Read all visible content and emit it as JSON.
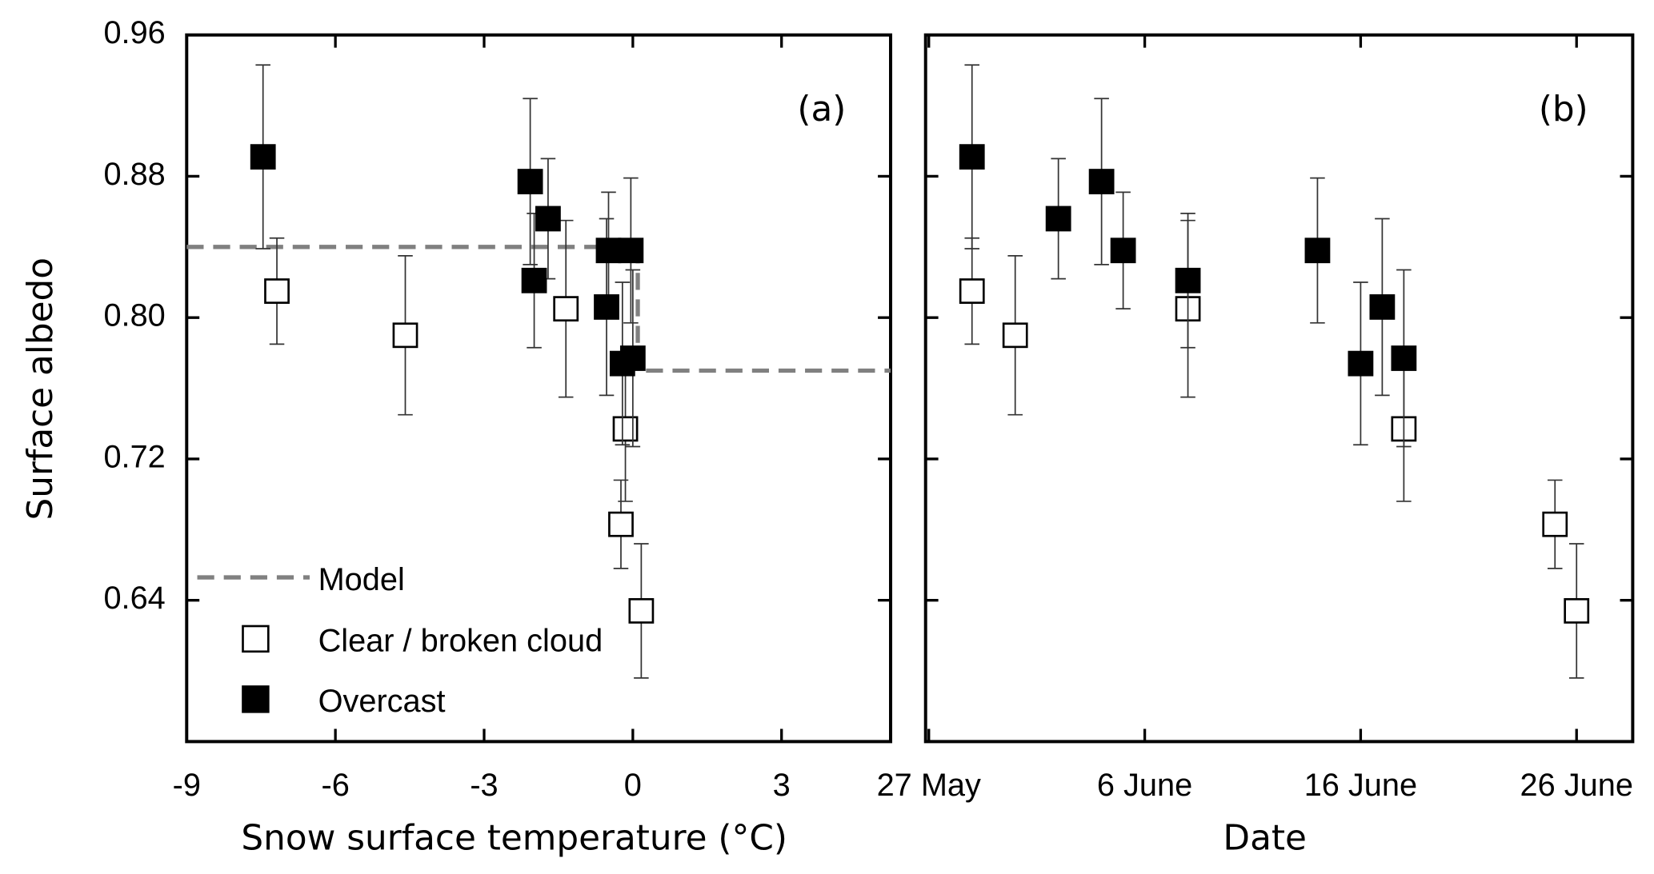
{
  "chart_data": [
    {
      "type": "scatter",
      "panel_label": "(a)",
      "xlabel": "Snow surface temperature (°C)",
      "ylabel": "Surface albedo",
      "xlim": [
        -9,
        5.2
      ],
      "ylim": [
        0.56,
        0.96
      ],
      "xticks": [
        -9,
        -6,
        -3,
        0,
        3
      ],
      "yticks": [
        0.64,
        0.72,
        {
          "value": 0.8,
          "label": "0.80"
        },
        0.88,
        0.96
      ],
      "legend": "lower left",
      "series": [
        {
          "name": "Model",
          "color": "#808080",
          "marker": "dashed-line",
          "x": [
            -9,
            0.1,
            0.1,
            5.2
          ],
          "values": [
            0.84,
            0.84,
            0.77,
            0.77
          ]
        },
        {
          "name": "Clear / broken cloud",
          "color": "#ffffff",
          "marker": "square",
          "x": [
            -7.18,
            -4.59,
            -1.35,
            -0.15,
            -0.24,
            0.17
          ],
          "values": [
            0.815,
            0.79,
            0.805,
            0.737,
            0.683,
            0.634
          ],
          "errors": [
            0.03,
            0.045,
            0.05,
            0.041,
            0.025,
            0.038
          ]
        },
        {
          "name": "Overcast",
          "color": "#000000",
          "marker": "square",
          "x": [
            -7.46,
            -2.07,
            -1.71,
            -1.99,
            -0.49,
            -0.53,
            -0.04,
            -0.21,
            0
          ],
          "values": [
            0.891,
            0.877,
            0.856,
            0.821,
            0.838,
            0.806,
            0.838,
            0.774,
            0.777
          ],
          "errors": [
            0.052,
            0.047,
            0.034,
            0.038,
            0.033,
            0.05,
            0.041,
            0.046,
            0.05
          ]
        }
      ]
    },
    {
      "type": "scatter",
      "panel_label": "(b)",
      "xlabel": "Date",
      "xlim": [
        26.85,
        59.6
      ],
      "ylim": [
        0.56,
        0.96
      ],
      "xticks": [
        {
          "value": 27,
          "label": "27 May"
        },
        {
          "value": 37,
          "label": "6 June"
        },
        {
          "value": 47,
          "label": "16 June"
        },
        {
          "value": 57,
          "label": "26 June"
        }
      ],
      "yticks": [
        0.64,
        0.72,
        0.8,
        0.88,
        0.96
      ],
      "ytick_labels": false,
      "series": [
        {
          "color": "#ffffff",
          "marker": "square",
          "x": [
            29,
            31,
            39,
            49,
            56,
            57
          ],
          "values": [
            0.815,
            0.79,
            0.805,
            0.737,
            0.683,
            0.634
          ],
          "errors": [
            0.03,
            0.045,
            0.05,
            0.041,
            0.025,
            0.038
          ]
        },
        {
          "color": "#000000",
          "marker": "square",
          "x": [
            29,
            33,
            35,
            36,
            39,
            45,
            47,
            48,
            49
          ],
          "values": [
            0.891,
            0.856,
            0.877,
            0.838,
            0.821,
            0.838,
            0.774,
            0.806,
            0.777
          ],
          "errors": [
            0.052,
            0.034,
            0.047,
            0.033,
            0.038,
            0.041,
            0.046,
            0.05,
            0.05
          ]
        }
      ]
    }
  ]
}
